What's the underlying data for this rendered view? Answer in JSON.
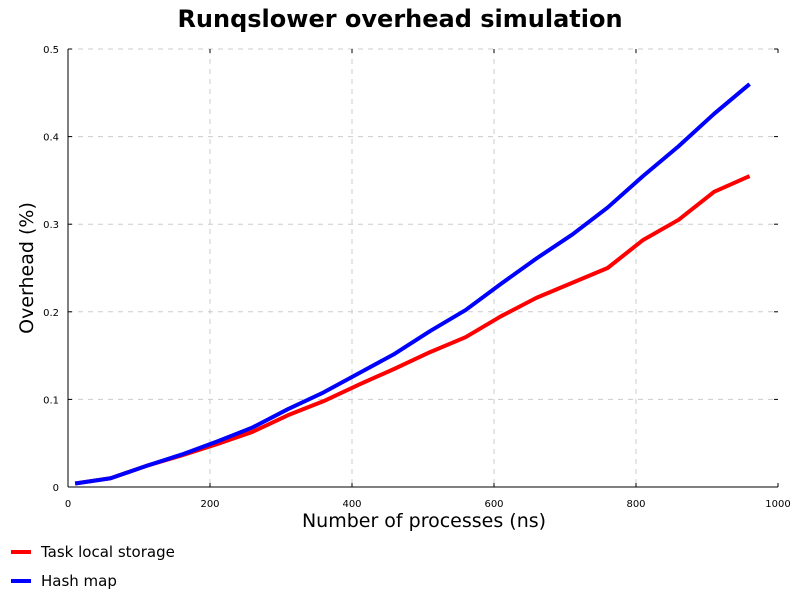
{
  "chart_data": {
    "type": "line",
    "title": "Runqslower overhead simulation",
    "xlabel": "Number of processes (ns)",
    "ylabel": "Overhead (%)",
    "xlim": [
      0,
      1000
    ],
    "ylim": [
      0,
      0.5
    ],
    "xticks": [
      0,
      200,
      400,
      600,
      800,
      1000
    ],
    "yticks": [
      0,
      0.1,
      0.2,
      0.3,
      0.4,
      0.5
    ],
    "xtick_labels": [
      "0",
      "200",
      "400",
      "600",
      "800",
      "1000"
    ],
    "ytick_labels": [
      "0",
      "0.1",
      "0.2",
      "0.3",
      "0.4",
      "0.5"
    ],
    "grid": true,
    "legend_position": "bottom-left (below plot)",
    "series": [
      {
        "name": "Task local storage",
        "color": "#ff0000",
        "x": [
          10,
          60,
          110,
          160,
          210,
          260,
          310,
          360,
          410,
          460,
          510,
          560,
          610,
          660,
          710,
          760,
          810,
          860,
          910,
          960
        ],
        "y": [
          0.004,
          0.01,
          0.024,
          0.036,
          0.049,
          0.063,
          0.082,
          0.098,
          0.117,
          0.135,
          0.154,
          0.171,
          0.195,
          0.216,
          0.233,
          0.25,
          0.282,
          0.305,
          0.337,
          0.355
        ]
      },
      {
        "name": "Hash map",
        "color": "#0000ff",
        "x": [
          10,
          60,
          110,
          160,
          210,
          260,
          310,
          360,
          410,
          460,
          510,
          560,
          610,
          660,
          710,
          760,
          810,
          860,
          910,
          960
        ],
        "y": [
          0.004,
          0.01,
          0.024,
          0.037,
          0.052,
          0.068,
          0.089,
          0.108,
          0.13,
          0.152,
          0.178,
          0.202,
          0.232,
          0.261,
          0.288,
          0.319,
          0.355,
          0.389,
          0.426,
          0.46
        ]
      }
    ]
  }
}
